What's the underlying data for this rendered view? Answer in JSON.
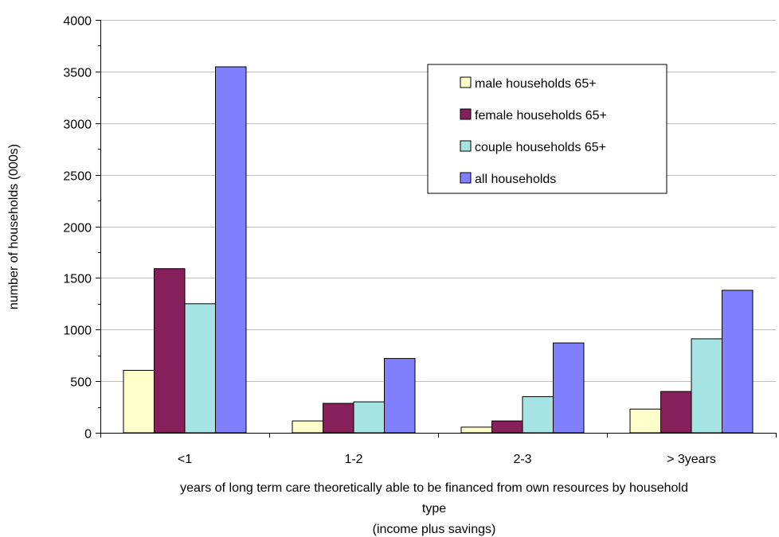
{
  "chart_data": {
    "type": "bar",
    "title": "",
    "categories": [
      "<1",
      "1-2",
      "2-3",
      "> 3years"
    ],
    "series": [
      {
        "name": "male households 65+",
        "color": "#FFFFCC",
        "values": [
          605,
          115,
          55,
          230
        ]
      },
      {
        "name": "female households 65+",
        "color": "#85205A",
        "values": [
          1590,
          285,
          115,
          400
        ]
      },
      {
        "name": "couple households 65+",
        "color": "#A6E4E4",
        "values": [
          1250,
          300,
          350,
          910
        ]
      },
      {
        "name": "all households",
        "color": "#8080FF",
        "values": [
          3545,
          720,
          870,
          1380
        ]
      }
    ],
    "ylabel": "number of households (000s)",
    "xlabel_lines": [
      "years of  long term care theoretically able to be financed  from own resources by household",
      "type",
      "(income plus savings)"
    ],
    "ylim": [
      0,
      4000
    ],
    "yticks": [
      0,
      500,
      1000,
      1500,
      2000,
      2500,
      3000,
      3500,
      4000
    ],
    "grid": true,
    "legend_position": "top-right"
  }
}
